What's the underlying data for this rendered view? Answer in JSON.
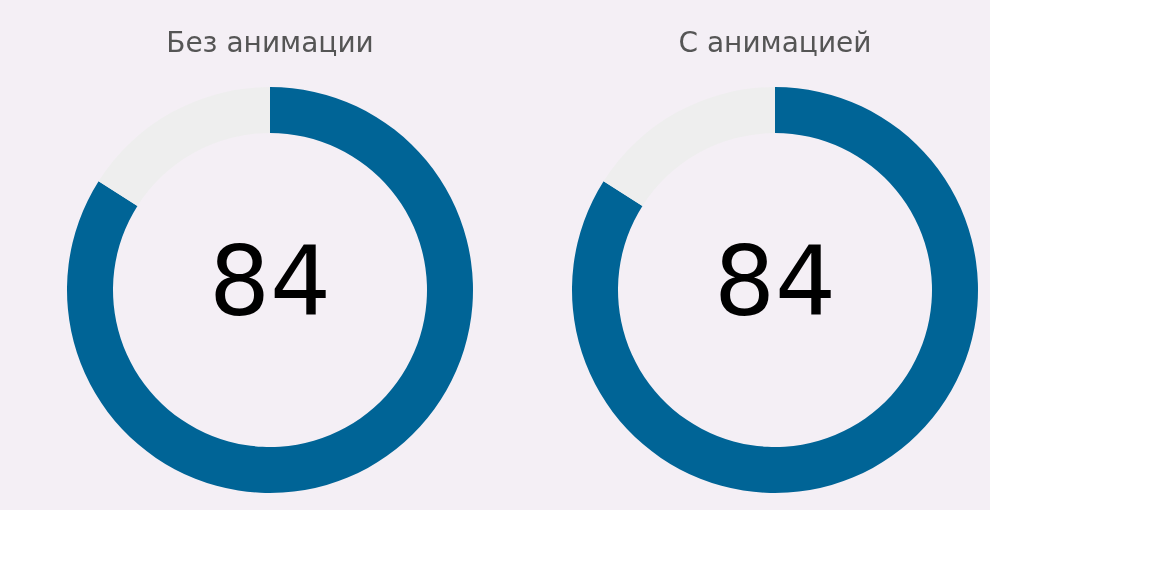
{
  "chart_data": [
    {
      "type": "donut",
      "title": "Без анимации",
      "categories": [
        null,
        null
      ],
      "values": [
        84,
        16
      ],
      "colors": [
        "#006496",
        "#eeeeee"
      ],
      "value_labels": [
        "84",
        null
      ]
    },
    {
      "type": "donut",
      "title": "С анимацией",
      "categories": [
        null,
        null
      ],
      "values": [
        84,
        16
      ],
      "colors": [
        "#006496",
        "#eeeeee"
      ],
      "value_labels": [
        "84",
        null
      ]
    }
  ]
}
